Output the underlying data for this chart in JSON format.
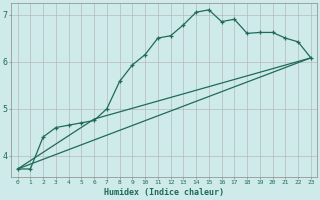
{
  "xlabel": "Humidex (Indice chaleur)",
  "xlim": [
    -0.5,
    23.5
  ],
  "ylim": [
    3.55,
    7.25
  ],
  "yticks": [
    4,
    5,
    6,
    7
  ],
  "xticks": [
    0,
    1,
    2,
    3,
    4,
    5,
    6,
    7,
    8,
    9,
    10,
    11,
    12,
    13,
    14,
    15,
    16,
    17,
    18,
    19,
    20,
    21,
    22,
    23
  ],
  "bg_color": "#ceeaea",
  "line_color": "#1f6b5a",
  "grid_color": "#b0b0b0",
  "series1_x": [
    0,
    1,
    2,
    3,
    4,
    5,
    6,
    7,
    8,
    9,
    10,
    11,
    12,
    13,
    14,
    15,
    16,
    17,
    18,
    19,
    20,
    21,
    22,
    23
  ],
  "series1_y": [
    3.72,
    3.72,
    4.4,
    4.6,
    4.65,
    4.7,
    4.75,
    5.0,
    5.58,
    5.93,
    6.15,
    6.5,
    6.55,
    6.78,
    7.05,
    7.1,
    6.85,
    6.9,
    6.6,
    6.62,
    6.62,
    6.5,
    6.42,
    6.08
  ],
  "series2_x": [
    0,
    23
  ],
  "series2_y": [
    3.72,
    6.08
  ],
  "series3_x": [
    0,
    6,
    23
  ],
  "series3_y": [
    3.72,
    4.78,
    6.08
  ]
}
